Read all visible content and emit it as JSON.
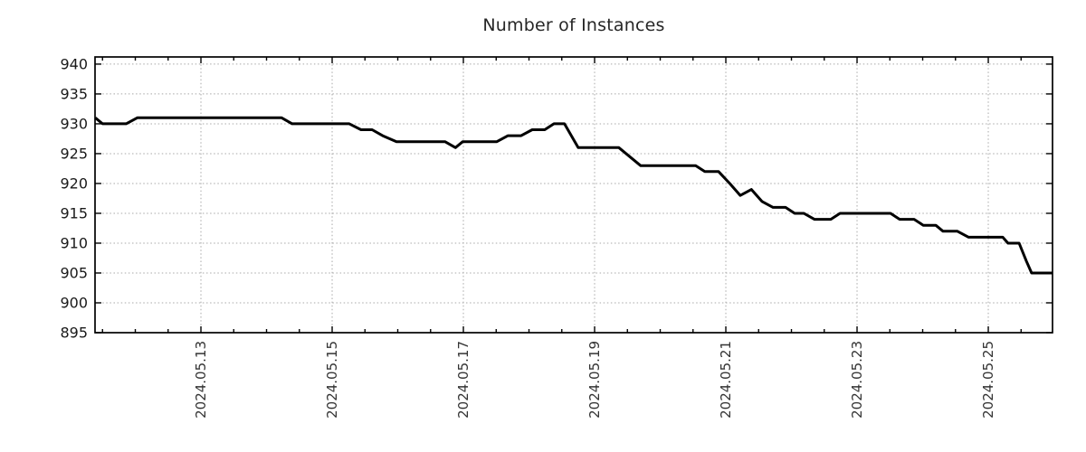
{
  "page": {
    "background": "#ffffff"
  },
  "chart_data": {
    "type": "line",
    "title": "Number of Instances",
    "grid": {
      "show": true,
      "color": "#a8a8a8",
      "style": "dotted"
    },
    "axis_color": "#000000",
    "tick_label_color": "#333333",
    "x_axis": {
      "unit": "days since 2024-05-13 00:00",
      "domain": [
        -1.614,
        12.979
      ],
      "major_tick_days": [
        0,
        2,
        4,
        6,
        8,
        10,
        12
      ],
      "tick_labels": [
        "2024.05.13",
        "2024.05.15",
        "2024.05.17",
        "2024.05.19",
        "2024.05.21",
        "2024.05.23",
        "2024.05.25"
      ],
      "minor_tick_interval_days": 0.5,
      "label_rotation_deg": 90
    },
    "y_axis": {
      "ylim": [
        895,
        941.2
      ],
      "ticks": [
        895,
        900,
        905,
        910,
        915,
        920,
        925,
        930,
        935,
        940
      ]
    },
    "series": [
      {
        "name": "instances",
        "color": "#000000",
        "line_width": 3,
        "points": [
          [
            -1.61,
            931
          ],
          [
            -1.5,
            930
          ],
          [
            -1.14,
            930
          ],
          [
            -0.97,
            931
          ],
          [
            1.23,
            931
          ],
          [
            1.39,
            930
          ],
          [
            2.26,
            930
          ],
          [
            2.44,
            929
          ],
          [
            2.61,
            929
          ],
          [
            2.77,
            928
          ],
          [
            2.98,
            927
          ],
          [
            3.72,
            927
          ],
          [
            3.88,
            926
          ],
          [
            3.99,
            927
          ],
          [
            4.51,
            927
          ],
          [
            4.68,
            928
          ],
          [
            4.88,
            928
          ],
          [
            5.05,
            929
          ],
          [
            5.24,
            929
          ],
          [
            5.38,
            930
          ],
          [
            5.54,
            930
          ],
          [
            5.75,
            926
          ],
          [
            6.37,
            926
          ],
          [
            6.7,
            923
          ],
          [
            7.54,
            923
          ],
          [
            7.68,
            922
          ],
          [
            7.89,
            922
          ],
          [
            8.06,
            920
          ],
          [
            8.22,
            918
          ],
          [
            8.39,
            919
          ],
          [
            8.55,
            917
          ],
          [
            8.72,
            916
          ],
          [
            8.91,
            916
          ],
          [
            9.05,
            915
          ],
          [
            9.19,
            915
          ],
          [
            9.35,
            914
          ],
          [
            9.6,
            914
          ],
          [
            9.74,
            915
          ],
          [
            10.51,
            915
          ],
          [
            10.65,
            914
          ],
          [
            10.87,
            914
          ],
          [
            11.01,
            913
          ],
          [
            11.2,
            913
          ],
          [
            11.31,
            912
          ],
          [
            11.53,
            912
          ],
          [
            11.7,
            911
          ],
          [
            12.22,
            911
          ],
          [
            12.3,
            910
          ],
          [
            12.47,
            910
          ],
          [
            12.58,
            907
          ],
          [
            12.66,
            905
          ],
          [
            12.98,
            905
          ]
        ]
      }
    ]
  }
}
